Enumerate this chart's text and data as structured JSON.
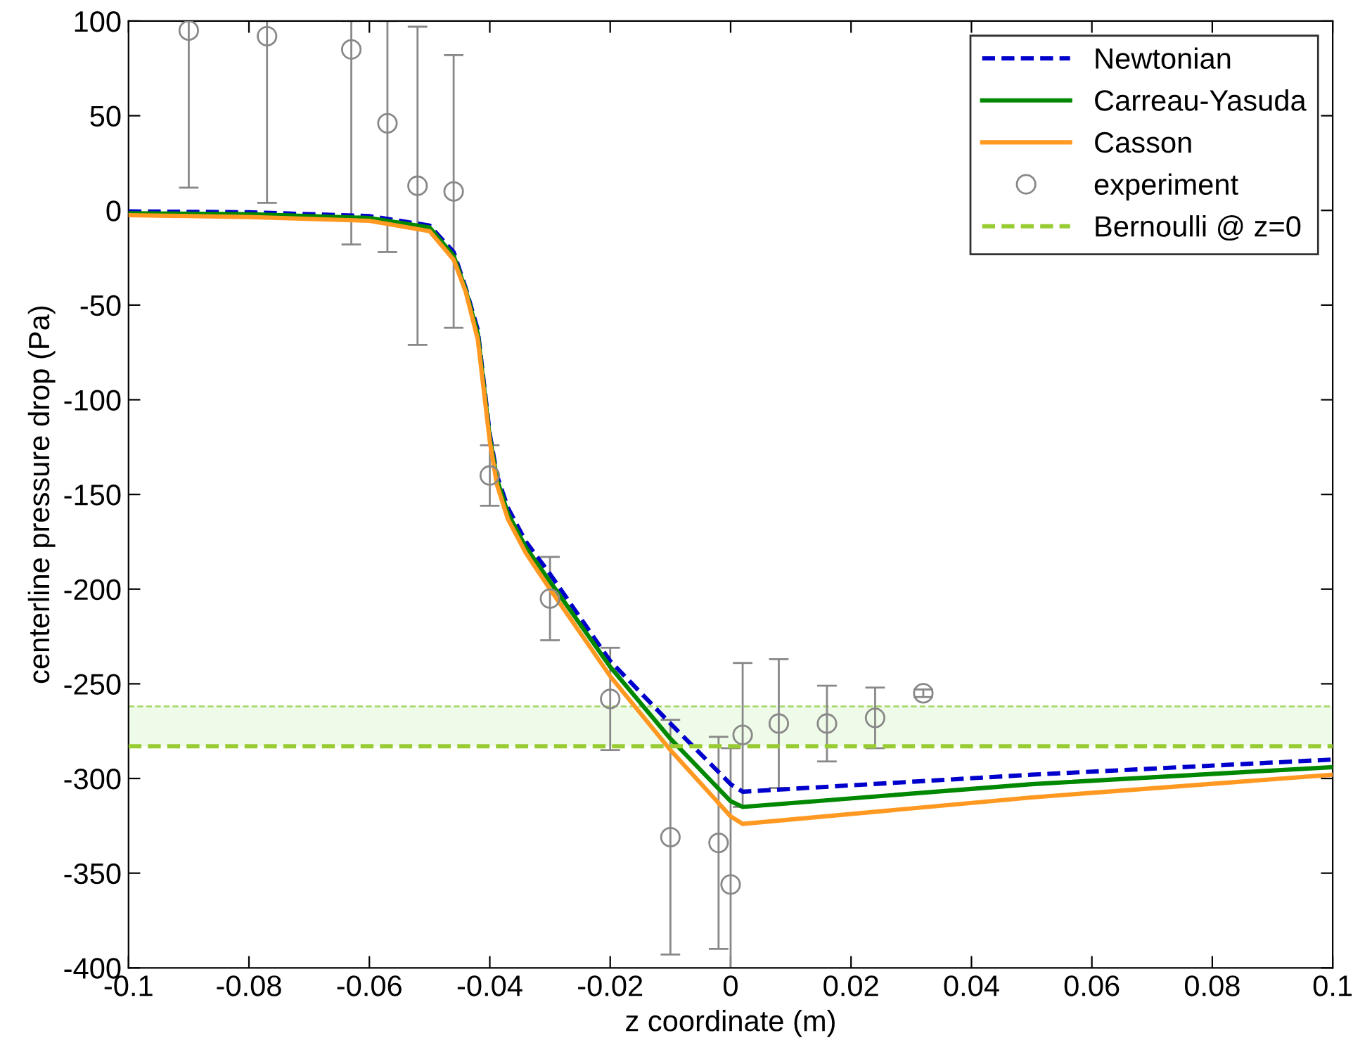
{
  "chart_data": {
    "type": "line",
    "xlabel": "z coordinate (m)",
    "ylabel": "centerline pressure drop (Pa)",
    "xlim": [
      -0.1,
      0.1
    ],
    "xticks": [
      -0.1,
      -0.08,
      -0.06,
      -0.04,
      -0.02,
      0,
      0.02,
      0.04,
      0.06,
      0.08,
      0.1
    ],
    "ylim": [
      -400,
      100
    ],
    "yticks": [
      -400,
      -350,
      -300,
      -250,
      -200,
      -150,
      -100,
      -50,
      0,
      50,
      100
    ],
    "grid": false,
    "legend": "top right",
    "bands": [
      {
        "axis": "y",
        "from": -283,
        "to": -262,
        "color": "#effbe9"
      }
    ],
    "ref_lines": [
      {
        "axis": "y",
        "value": -262,
        "color": "#a6d96a",
        "line_style": "dashed"
      }
    ],
    "series": [
      {
        "name": "Newtonian",
        "color": "#0000cc",
        "line_style": "dashed",
        "x": [
          -0.1,
          -0.08,
          -0.06,
          -0.05,
          -0.046,
          -0.044,
          -0.042,
          -0.04,
          -0.0388,
          -0.037,
          -0.034,
          -0.03,
          -0.02,
          -0.01,
          0,
          0.002,
          0.05,
          0.1
        ],
        "values": [
          -0.5,
          -1,
          -3,
          -8,
          -22,
          -41,
          -63,
          -118,
          -140,
          -157,
          -175,
          -192,
          -238,
          -271,
          -303,
          -307,
          -298,
          -290
        ]
      },
      {
        "name": "Carreau-Yasuda",
        "color": "#008800",
        "line_style": "solid",
        "x": [
          -0.1,
          -0.08,
          -0.06,
          -0.05,
          -0.046,
          -0.044,
          -0.042,
          -0.04,
          -0.0388,
          -0.037,
          -0.034,
          -0.03,
          -0.02,
          -0.01,
          0,
          0.002,
          0.05,
          0.1
        ],
        "values": [
          -1.5,
          -2,
          -4,
          -9,
          -24,
          -42,
          -65,
          -120,
          -142,
          -160,
          -178,
          -196,
          -241,
          -279,
          -312,
          -315,
          -303,
          -294
        ]
      },
      {
        "name": "Casson",
        "color": "#ff9922",
        "line_style": "solid",
        "x": [
          -0.1,
          -0.08,
          -0.06,
          -0.05,
          -0.046,
          -0.044,
          -0.042,
          -0.04,
          -0.0388,
          -0.037,
          -0.034,
          -0.03,
          -0.02,
          -0.01,
          0,
          0.002,
          0.05,
          0.1
        ],
        "values": [
          -2.5,
          -3.5,
          -5.5,
          -11,
          -26,
          -43,
          -68,
          -122,
          -145,
          -163,
          -181,
          -200,
          -246,
          -285,
          -320,
          -324,
          -310,
          -298
        ]
      },
      {
        "name": "experiment",
        "type": "scatter",
        "color": "#888888",
        "marker": "circle",
        "x": [
          -0.09,
          -0.077,
          -0.063,
          -0.057,
          -0.052,
          -0.046,
          -0.04,
          -0.03,
          -0.02,
          -0.01,
          -0.002,
          0,
          0.002,
          0.008,
          0.016,
          0.024,
          0.032
        ],
        "values": [
          95,
          92,
          85,
          46,
          13,
          10,
          -140,
          -205,
          -258,
          -331,
          -334,
          -356,
          -277,
          -271,
          -271,
          -268,
          -255
        ],
        "errors": [
          [
            12,
            100
          ],
          [
            4,
            100
          ],
          [
            -18,
            100
          ],
          [
            -22,
            100
          ],
          84,
          72,
          16,
          22,
          27,
          62,
          56,
          72,
          38,
          34,
          20,
          16,
          2
        ]
      },
      {
        "name": "Bernoulli @ z=0",
        "color": "#99cc33",
        "line_style": "dashed",
        "x": [
          -0.1,
          0.1
        ],
        "values": [
          -283,
          -283
        ]
      }
    ]
  }
}
